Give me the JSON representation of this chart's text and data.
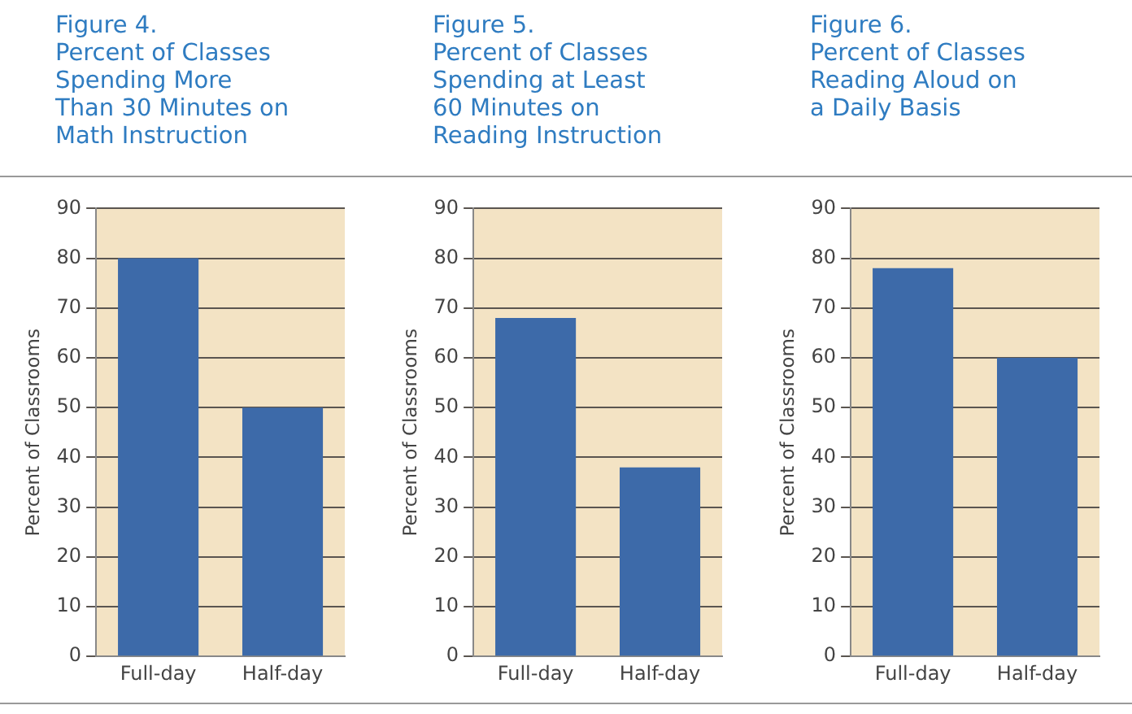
{
  "chart_data": [
    {
      "type": "bar",
      "title": "Figure 4.\nPercent of Classes\nSpending More\nThan 30 Minutes on\nMath Instruction",
      "ylabel": "Percent of Classrooms",
      "categories": [
        "Full-day",
        "Half-day"
      ],
      "values": [
        80,
        50
      ],
      "color": "#3d6aa9",
      "ylim": [
        0,
        90
      ],
      "yticks": [
        0,
        10,
        20,
        30,
        40,
        50,
        60,
        70,
        80,
        90
      ],
      "grid": "y",
      "bands": [
        {
          "axis": "y",
          "from": 0,
          "to": 90,
          "color": "#f3e3c4"
        }
      ]
    },
    {
      "type": "bar",
      "title": "Figure 5.\nPercent of Classes\nSpending at Least\n60 Minutes on\nReading Instruction",
      "ylabel": "Percent of Classrooms",
      "categories": [
        "Full-day",
        "Half-day"
      ],
      "values": [
        68,
        38
      ],
      "color": "#3d6aa9",
      "ylim": [
        0,
        90
      ],
      "yticks": [
        0,
        10,
        20,
        30,
        40,
        50,
        60,
        70,
        80,
        90
      ],
      "grid": "y",
      "bands": [
        {
          "axis": "y",
          "from": 0,
          "to": 90,
          "color": "#f3e3c4"
        }
      ]
    },
    {
      "type": "bar",
      "title": "Figure 6.\nPercent of Classes\nReading Aloud on\na Daily Basis",
      "ylabel": "Percent of Classrooms",
      "categories": [
        "Full-day",
        "Half-day"
      ],
      "values": [
        78,
        60
      ],
      "color": "#3d6aa9",
      "ylim": [
        0,
        90
      ],
      "yticks": [
        0,
        10,
        20,
        30,
        40,
        50,
        60,
        70,
        80,
        90
      ],
      "grid": "y",
      "bands": [
        {
          "axis": "y",
          "from": 0,
          "to": 90,
          "color": "#f3e3c4"
        }
      ]
    }
  ]
}
